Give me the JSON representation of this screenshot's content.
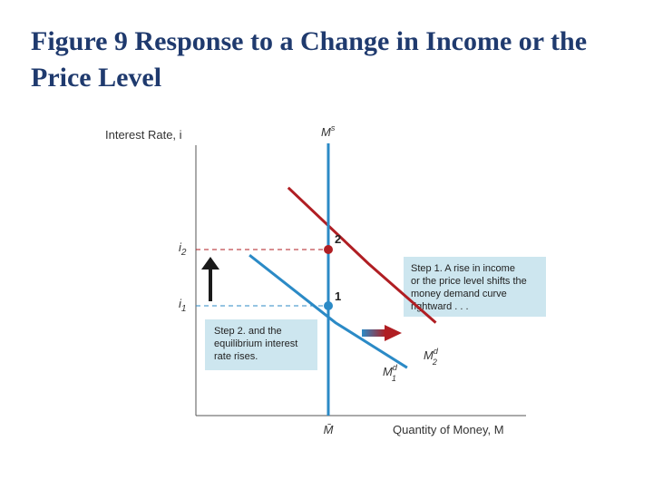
{
  "title": "Figure 9 Response to a Change in Income or the Price Level",
  "chart_data": {
    "type": "line",
    "ylabel": "Interest Rate, i",
    "xlabel": "Quantity of Money, M",
    "x_tick_label": "M̄",
    "y_ticks": [
      {
        "base": "i",
        "sub": "2",
        "level": 2
      },
      {
        "base": "i",
        "sub": "1",
        "level": 1
      }
    ],
    "supply": {
      "base": "M",
      "sup": "s",
      "x": 1
    },
    "series": [
      {
        "base": "M",
        "sup": "d",
        "sub": "1",
        "color": "#2b8ac6",
        "points": [
          [
            0.45,
            1.9
          ],
          [
            1.05,
            0.7
          ],
          [
            1.55,
            -0.1
          ]
        ]
      },
      {
        "base": "M",
        "sup": "d",
        "sub": "2",
        "color": "#b01e23",
        "points": [
          [
            0.72,
            3.1
          ],
          [
            1.28,
            1.75
          ],
          [
            1.75,
            0.7
          ]
        ]
      }
    ],
    "equilibria": [
      {
        "label": "1",
        "x": 1,
        "y": 1
      },
      {
        "label": "2",
        "x": 1,
        "y": 2
      }
    ],
    "annotations": [
      {
        "id": "step1",
        "lines": [
          "Step 1. A rise in income",
          "or the price level shifts the",
          "money demand curve",
          "rightward . . ."
        ]
      },
      {
        "id": "step2",
        "lines": [
          "Step 2. and the",
          "equilibrium interest",
          "rate rises."
        ]
      }
    ],
    "colors": {
      "axis": "#555555",
      "supply": "#2b8ac6",
      "md1": "#2b8ac6",
      "md2": "#b01e23",
      "note_bg": "#cde6ef",
      "arrow_up": "#1a1a1a"
    }
  }
}
